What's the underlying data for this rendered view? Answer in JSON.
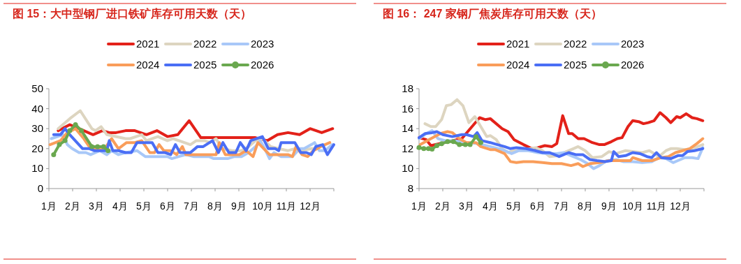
{
  "chart_data": [
    {
      "type": "line",
      "title": "图 15：大中型钢厂进口铁矿库存可用天数（天）",
      "legend": "top",
      "grid": false,
      "xlim": [
        1,
        13
      ],
      "xticks": [
        {
          "value": 1,
          "label": "1月"
        },
        {
          "value": 2,
          "label": "2月"
        },
        {
          "value": 3,
          "label": "3月"
        },
        {
          "value": 4,
          "label": "4月"
        },
        {
          "value": 5,
          "label": "5月"
        },
        {
          "value": 6,
          "label": "6月"
        },
        {
          "value": 7,
          "label": "7月"
        },
        {
          "value": 8,
          "label": "8月"
        },
        {
          "value": 9,
          "label": "9月"
        },
        {
          "value": 10,
          "label": "10月"
        },
        {
          "value": 11,
          "label": "11月"
        },
        {
          "value": 12,
          "label": "12月"
        },
        {
          "value": 13,
          "label": null
        }
      ],
      "ylim": [
        0,
        50
      ],
      "yticks": [
        0,
        10,
        20,
        30,
        40,
        50
      ],
      "series": [
        {
          "name": "2021",
          "color": "#e32119",
          "x": [
            1.39,
            1.88,
            2.27,
            2.86,
            3.25,
            3.54,
            3.83,
            4.23,
            4.62,
            5.11,
            5.55,
            5.99,
            6.43,
            6.91,
            7.4,
            9.7,
            10.19,
            10.63,
            11.07,
            11.56,
            12.0,
            12.49,
            12.95
          ],
          "values": [
            29,
            32,
            30,
            27,
            29,
            28,
            28,
            29,
            29,
            27,
            29,
            26,
            27,
            34,
            25.5,
            25.5,
            24,
            27,
            28,
            27,
            30,
            28,
            30
          ]
        },
        {
          "name": "2022",
          "color": "#ddd5c0",
          "x": [
            1.39,
            1.88,
            2.32,
            2.81,
            2.96,
            3.2,
            3.44,
            4.23,
            4.42,
            4.91,
            5.11,
            5.59,
            5.99,
            6.23,
            6.96,
            7.21,
            7.55,
            7.79,
            8.04,
            8.28,
            8.72,
            9.11,
            9.41,
            9.7,
            9.99,
            10.34,
            10.68,
            11.07,
            11.36,
            11.66,
            12.05,
            12.24
          ],
          "values": [
            30,
            35,
            39,
            30,
            29,
            31,
            27,
            25,
            25,
            27,
            24,
            26,
            24,
            25,
            22,
            24,
            24,
            23,
            25,
            20,
            19,
            19,
            21,
            24,
            25,
            21,
            20,
            19,
            20,
            19,
            20,
            20
          ]
        },
        {
          "name": "2023",
          "color": "#a8c8f8",
          "x": [
            1.1,
            1.59,
            1.78,
            1.98,
            2.27,
            2.56,
            2.76,
            3.15,
            3.44,
            3.64,
            3.93,
            4.23,
            4.71,
            5.06,
            5.99,
            6.18,
            6.47,
            6.77,
            7.11,
            7.74,
            7.94,
            8.53,
            8.82,
            9.11,
            9.41,
            9.7,
            9.9,
            10.09,
            10.29,
            10.48,
            10.78,
            11.26,
            11.56,
            11.75,
            12.05,
            12.19,
            12.39,
            12.63,
            12.93
          ],
          "values": [
            25,
            27,
            22,
            20,
            18,
            18,
            17,
            19,
            17,
            19,
            17,
            18,
            19,
            16,
            16,
            15,
            16,
            17,
            16,
            16,
            15,
            15,
            16,
            16,
            18,
            21,
            24,
            20,
            15,
            18,
            16,
            16,
            20,
            20,
            22,
            23,
            19,
            19,
            22
          ]
        },
        {
          "name": "2024",
          "color": "#f99d5a",
          "x": [
            1.05,
            1.49,
            1.78,
            2.12,
            2.47,
            2.76,
            3.35,
            3.64,
            3.93,
            4.27,
            4.62,
            4.91,
            5.25,
            5.45,
            5.64,
            5.84,
            6.13,
            6.38,
            6.62,
            6.77,
            7.26,
            8.04,
            8.18,
            8.43,
            8.72,
            9.02,
            9.31,
            9.6,
            9.8,
            10.29,
            11.07,
            11.26,
            11.41,
            11.66,
            11.9,
            12.14,
            12.44,
            12.83
          ],
          "values": [
            22,
            24,
            28,
            30,
            25,
            20,
            20,
            25,
            20,
            23,
            23,
            24,
            18,
            18,
            22,
            19,
            19,
            17,
            21,
            17,
            17,
            17,
            23,
            17,
            17,
            17,
            19,
            16,
            23,
            17,
            17,
            16,
            21,
            17,
            16,
            19,
            21,
            23
          ]
        },
        {
          "name": "2025",
          "color": "#4a6ef5",
          "x": [
            1.2,
            1.49,
            1.68,
            1.88,
            2.42,
            2.71,
            2.91,
            3.25,
            3.44,
            3.54,
            3.69,
            3.93,
            4.23,
            4.47,
            4.71,
            5.35,
            5.59,
            5.89,
            6.13,
            6.33,
            6.52,
            6.96,
            7.26,
            7.5,
            7.89,
            8.14,
            8.33,
            8.58,
            8.87,
            9.06,
            9.31,
            9.5,
            9.99,
            10.24,
            10.53,
            10.68,
            10.78,
            11.36,
            11.61,
            11.85,
            12.05,
            12.24,
            12.53,
            12.73,
            13.0
          ],
          "values": [
            27,
            27,
            30,
            27,
            20,
            20,
            19,
            19,
            19,
            24,
            19,
            19,
            18,
            18,
            23,
            23,
            18,
            18,
            17,
            22,
            18,
            18,
            21,
            21,
            24,
            18,
            23,
            18,
            18,
            23,
            19,
            24,
            26,
            20,
            20,
            19,
            23,
            23,
            18,
            18,
            17,
            21,
            22,
            17,
            22
          ]
        },
        {
          "name": "2026",
          "color": "#6aa84f",
          "marker": "circle",
          "x": [
            1.2,
            1.44,
            1.68,
            1.88,
            2.12,
            2.37,
            2.81,
            3.05,
            3.3,
            3.49
          ],
          "values": [
            17,
            22,
            24,
            29,
            32,
            29,
            21,
            21,
            21,
            19
          ]
        }
      ]
    },
    {
      "type": "line",
      "title": "图 16： 247 家钢厂焦炭库存可用天数（天）",
      "legend": "top",
      "grid": false,
      "xlim": [
        1,
        13
      ],
      "xticks": [
        {
          "value": 1,
          "label": "1月"
        },
        {
          "value": 2,
          "label": "2月"
        },
        {
          "value": 3,
          "label": "3月"
        },
        {
          "value": 4,
          "label": "4月"
        },
        {
          "value": 5,
          "label": "5月"
        },
        {
          "value": 6,
          "label": "6月"
        },
        {
          "value": 7,
          "label": "7月"
        },
        {
          "value": 8,
          "label": "8月"
        },
        {
          "value": 9,
          "label": "9月"
        },
        {
          "value": 10,
          "label": "10月"
        },
        {
          "value": 11,
          "label": "11月"
        },
        {
          "value": 12,
          "label": "12月"
        },
        {
          "value": 13,
          "label": null
        }
      ],
      "ylim": [
        8,
        18
      ],
      "yticks": [
        8,
        10,
        12,
        14,
        16,
        18
      ],
      "series": [
        {
          "name": "2021",
          "color": "#e32119",
          "x": [
            1.0,
            1.3,
            1.5,
            2.8,
            3.55,
            3.8,
            4.0,
            4.5,
            4.75,
            5.0,
            5.4,
            5.75,
            6.0,
            6.3,
            6.6,
            6.8,
            7.05,
            7.3,
            7.45,
            7.7,
            7.95,
            8.3,
            8.6,
            8.8,
            9.1,
            9.35,
            9.55,
            9.8,
            10.0,
            10.25,
            10.45,
            10.65,
            10.9,
            11.15,
            11.4,
            11.6,
            11.85,
            12.0,
            12.25,
            12.5,
            12.7,
            12.95
          ],
          "values": [
            13.1,
            12.9,
            12.3,
            13.0,
            15.1,
            14.9,
            15.0,
            14.0,
            13.7,
            12.9,
            12.4,
            12.0,
            12.1,
            12.3,
            12.2,
            12.5,
            15.3,
            13.5,
            13.5,
            13.0,
            13.0,
            12.6,
            12.4,
            12.4,
            12.7,
            13.0,
            13.1,
            14.2,
            14.8,
            14.7,
            14.5,
            14.6,
            14.8,
            15.6,
            15.1,
            14.6,
            15.2,
            15.1,
            15.5,
            15.1,
            15.0,
            14.8
          ]
        },
        {
          "name": "2022",
          "color": "#ddd5c0",
          "x": [
            1.25,
            1.5,
            1.7,
            1.95,
            2.15,
            2.35,
            2.6,
            2.85,
            3.1,
            3.35,
            3.6,
            3.85,
            4.0,
            4.25,
            4.5,
            4.75,
            5.0,
            5.5,
            5.9,
            6.2,
            6.5,
            6.9,
            7.2,
            7.5,
            7.7,
            8.0,
            8.3,
            8.7,
            9.0,
            9.3,
            9.7,
            10.0,
            10.4,
            10.7,
            10.9,
            11.1,
            11.4,
            11.6,
            11.85,
            12.2,
            12.5,
            12.95
          ],
          "values": [
            14.5,
            14.2,
            14.2,
            14.9,
            16.3,
            16.4,
            16.9,
            16.3,
            14.6,
            15.2,
            14.2,
            13.2,
            13.3,
            12.9,
            12.0,
            11.6,
            11.8,
            11.9,
            12.1,
            11.8,
            11.2,
            11.3,
            11.7,
            12.0,
            12.2,
            11.8,
            11.1,
            11.2,
            11.7,
            11.5,
            11.8,
            11.7,
            11.6,
            11.8,
            11.5,
            11.2,
            11.8,
            12.0,
            12.0,
            11.9,
            12.0,
            12.4
          ]
        },
        {
          "name": "2023",
          "color": "#a8c8f8",
          "x": [
            1.0,
            1.3,
            1.55,
            1.8,
            2.1,
            2.5,
            3.0,
            3.5,
            4.0,
            4.5,
            4.9,
            5.2,
            5.6,
            6.0,
            6.4,
            6.8,
            7.1,
            7.4,
            7.8,
            8.1,
            8.35,
            8.6,
            8.9,
            9.3,
            9.6,
            10.0,
            10.4,
            10.8,
            11.1,
            11.4,
            11.7,
            11.9,
            12.2,
            12.5,
            12.75,
            12.95
          ],
          "values": [
            13.0,
            13.5,
            13.8,
            13.0,
            12.8,
            12.8,
            12.6,
            12.5,
            12.2,
            11.9,
            11.5,
            11.8,
            11.8,
            11.6,
            11.5,
            11.5,
            11.6,
            11.3,
            10.9,
            10.5,
            10.0,
            10.3,
            10.8,
            10.9,
            10.7,
            10.7,
            10.6,
            10.7,
            11.1,
            11.0,
            10.6,
            10.8,
            11.1,
            11.1,
            11.0,
            12.1
          ]
        },
        {
          "name": "2024",
          "color": "#f99d5a",
          "x": [
            1.05,
            1.5,
            1.9,
            2.2,
            2.4,
            2.7,
            3.0,
            3.4,
            3.6,
            4.0,
            4.2,
            4.6,
            4.85,
            5.1,
            5.4,
            5.8,
            6.2,
            6.6,
            7.0,
            7.4,
            7.7,
            7.9,
            8.2,
            8.6,
            9.0,
            9.5,
            9.9,
            10.0,
            10.4,
            10.8,
            11.2,
            11.5,
            11.8,
            12.1,
            12.4,
            12.7,
            12.95
          ],
          "values": [
            12.4,
            13.0,
            13.5,
            13.7,
            13.6,
            13.0,
            12.6,
            12.6,
            12.2,
            11.9,
            11.9,
            11.5,
            10.7,
            10.6,
            10.7,
            10.7,
            10.6,
            10.5,
            10.5,
            10.3,
            10.5,
            10.2,
            10.5,
            10.6,
            10.8,
            10.8,
            10.8,
            11.1,
            10.8,
            10.8,
            11.1,
            11.2,
            11.6,
            11.8,
            12.0,
            12.5,
            13.0
          ]
        },
        {
          "name": "2025",
          "color": "#4a6ef5",
          "x": [
            1.0,
            1.25,
            1.55,
            1.75,
            2.0,
            2.4,
            2.6,
            2.8,
            3.0,
            3.3,
            3.45,
            3.65,
            4.0,
            4.3,
            4.6,
            4.85,
            5.1,
            5.5,
            5.9,
            6.2,
            6.5,
            6.9,
            7.3,
            7.6,
            7.9,
            8.2,
            8.5,
            8.85,
            9.1,
            9.2,
            9.4,
            9.7,
            10.0,
            10.3,
            10.6,
            10.8,
            11.0,
            11.2,
            11.6,
            11.9,
            12.1,
            12.3,
            12.6,
            12.95
          ],
          "values": [
            13.1,
            13.5,
            13.6,
            13.7,
            13.4,
            13.2,
            13.3,
            13.4,
            13.4,
            13.2,
            13.6,
            12.8,
            12.6,
            12.4,
            12.2,
            12.0,
            12.1,
            12.0,
            11.8,
            11.6,
            11.6,
            11.2,
            11.6,
            11.4,
            11.4,
            10.9,
            10.8,
            10.7,
            10.8,
            11.7,
            11.2,
            11.3,
            11.6,
            11.5,
            11.2,
            11.1,
            11.6,
            11.1,
            11.0,
            11.3,
            11.3,
            11.7,
            11.8,
            12.0
          ]
        },
        {
          "name": "2026",
          "color": "#6aa84f",
          "marker": "circle",
          "x": [
            1.0,
            1.2,
            1.4,
            1.55,
            1.75,
            1.95,
            2.2,
            2.45,
            2.7,
            2.95,
            3.15,
            3.4,
            3.6
          ],
          "values": [
            12.1,
            12.0,
            12.0,
            11.95,
            12.3,
            12.5,
            12.7,
            12.7,
            12.4,
            12.4,
            12.4,
            13.2,
            12.6
          ]
        }
      ]
    }
  ]
}
